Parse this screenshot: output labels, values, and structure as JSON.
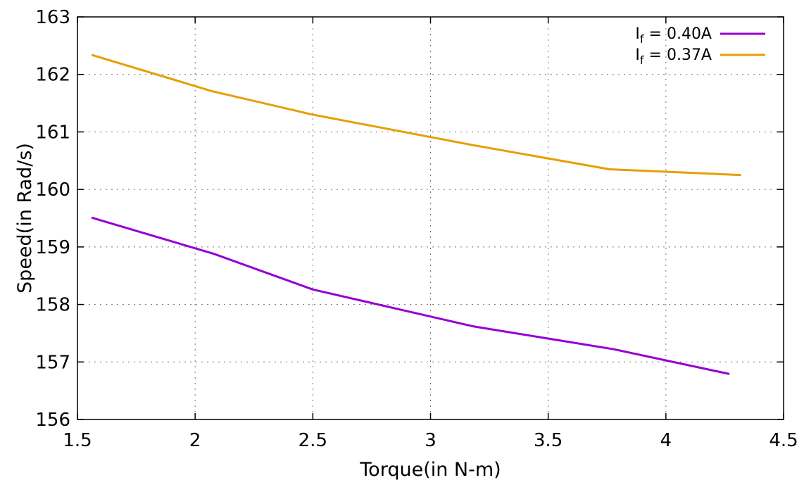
{
  "chart_data": {
    "type": "line",
    "title": "",
    "xlabel": "Torque(in N-m)",
    "ylabel": "Speed(in Rad/s)",
    "xlim": [
      1.5,
      4.5
    ],
    "ylim": [
      156,
      163
    ],
    "xticks": [
      1.5,
      2,
      2.5,
      3,
      3.5,
      4,
      4.5
    ],
    "xtick_labels": [
      "1.5",
      "2",
      "2.5",
      "3",
      "3.5",
      "4",
      "4.5"
    ],
    "yticks": [
      156,
      157,
      158,
      159,
      160,
      161,
      162,
      163
    ],
    "ytick_labels": [
      "156",
      "157",
      "158",
      "159",
      "160",
      "161",
      "162",
      "163"
    ],
    "grid": true,
    "legend_position": "top-right",
    "series": [
      {
        "name_main": "I",
        "name_sub": "f",
        "name_rest": " = 0.40A",
        "color": "#9400d3",
        "x": [
          1.56,
          2.08,
          2.5,
          3.18,
          3.78,
          4.27
        ],
        "y": [
          159.51,
          158.88,
          158.26,
          157.62,
          157.22,
          156.79
        ]
      },
      {
        "name_main": "I",
        "name_sub": "f",
        "name_rest": " = 0.37A",
        "color": "#e69f00",
        "x": [
          1.56,
          2.07,
          2.5,
          3.18,
          3.76,
          4.32
        ],
        "y": [
          162.34,
          161.71,
          161.3,
          160.77,
          160.35,
          160.25
        ]
      }
    ]
  }
}
